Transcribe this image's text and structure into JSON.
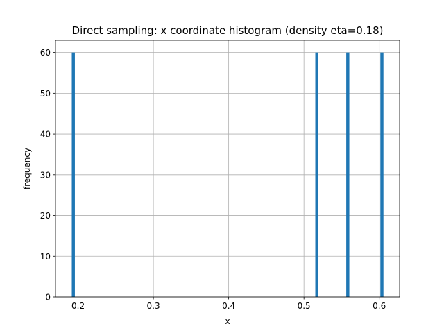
{
  "chart_data": {
    "type": "bar",
    "title": "Direct sampling: x coordinate histogram (density eta=0.18)",
    "xlabel": "x",
    "ylabel": "frequency",
    "xlim": [
      0.17,
      0.627
    ],
    "ylim": [
      0,
      63
    ],
    "xticks": [
      0.2,
      0.3,
      0.4,
      0.5,
      0.6
    ],
    "xtick_labels": [
      "0.2",
      "0.3",
      "0.4",
      "0.5",
      "0.6"
    ],
    "yticks": [
      0,
      10,
      20,
      30,
      40,
      50,
      60
    ],
    "ytick_labels": [
      "0",
      "10",
      "20",
      "30",
      "40",
      "50",
      "60"
    ],
    "grid": true,
    "bin_width": 0.0041,
    "bars": [
      {
        "x": 0.1937,
        "value": 60
      },
      {
        "x": 0.5171,
        "value": 60
      },
      {
        "x": 0.5582,
        "value": 60
      },
      {
        "x": 0.6035,
        "value": 60
      }
    ],
    "colors": {
      "bar": "#1f77b4",
      "grid": "#b0b0b0",
      "axis": "#000000"
    }
  }
}
